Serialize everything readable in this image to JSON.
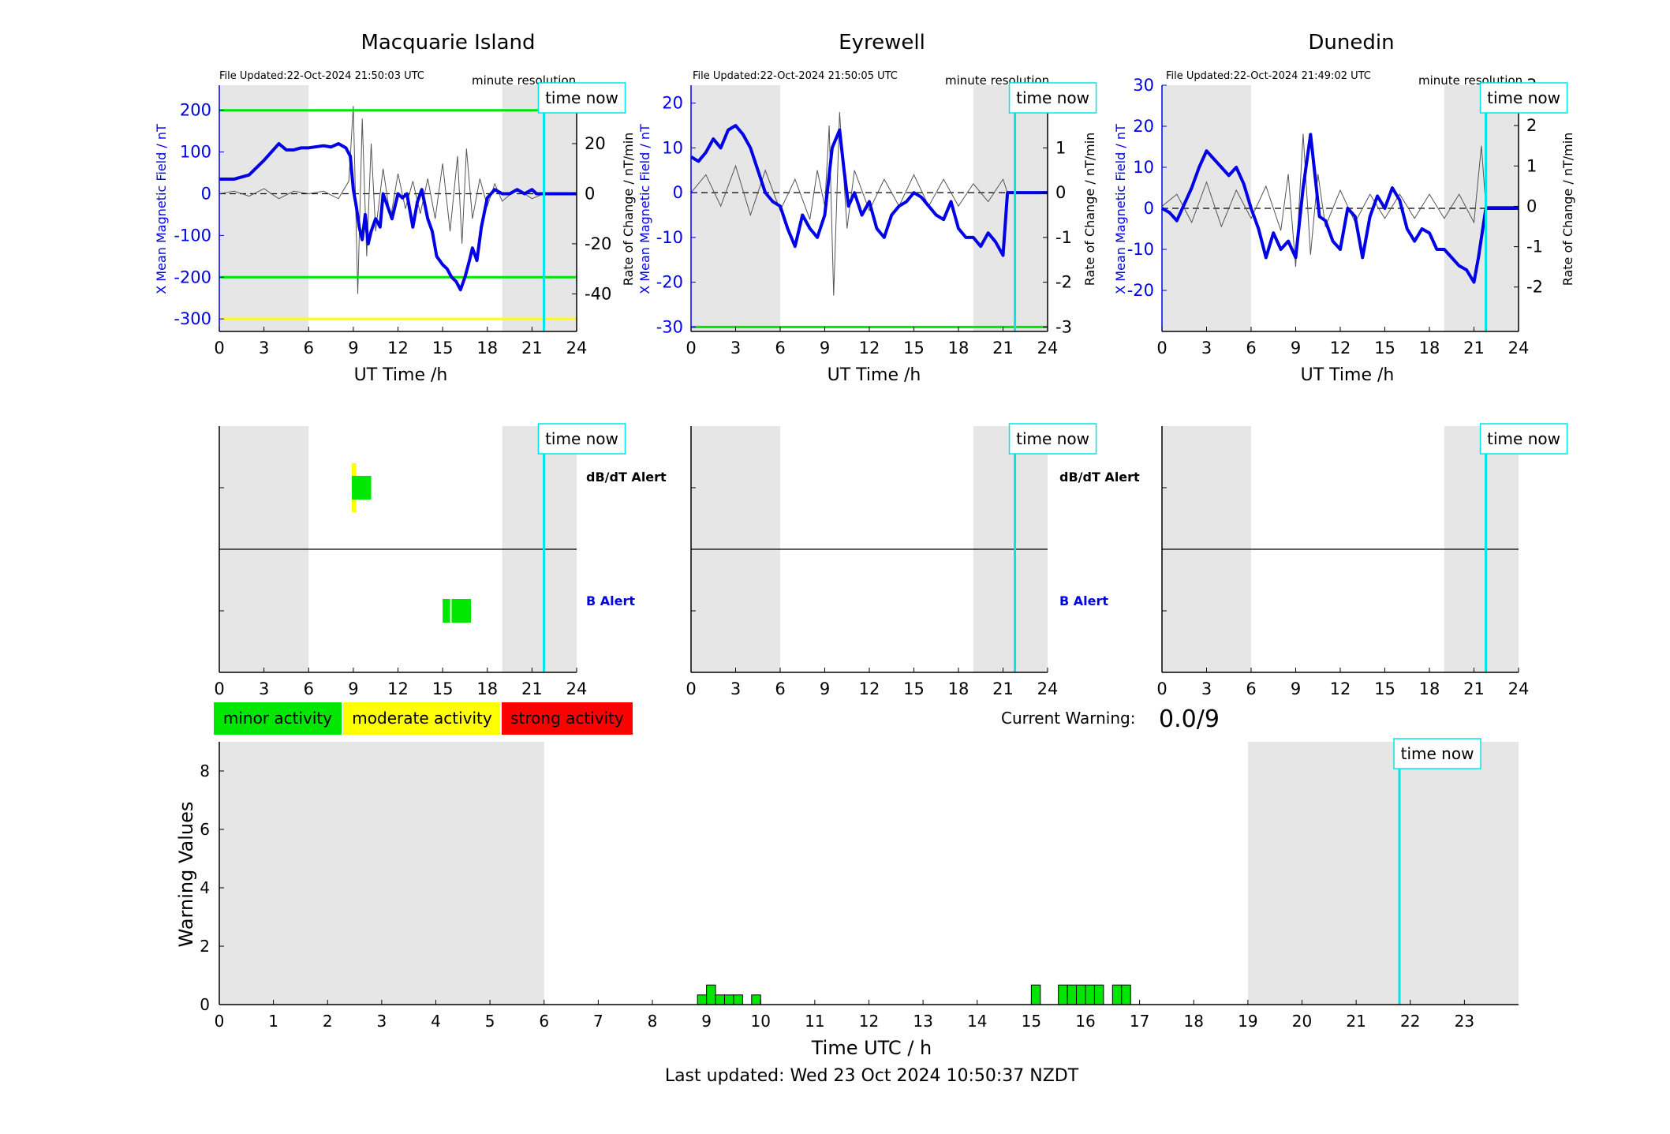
{
  "panels": [
    {
      "title": "Macquarie Island",
      "file_updated": "File Updated:22-Oct-2024 21:50:03 UTC",
      "resolution": "minute resolution",
      "ylabel_left": "X Mean Magnetic Field / nT",
      "ylabel_right": "Rate of Change / nT/min"
    },
    {
      "title": "Eyrewell",
      "file_updated": "File Updated:22-Oct-2024 21:50:05 UTC",
      "resolution": "minute resolution",
      "ylabel_left": "X Mean Magnetic Field / nT",
      "ylabel_right": "Rate of Change / nT/min"
    },
    {
      "title": "Dunedin",
      "file_updated": "File Updated:22-Oct-2024 21:49:02 UTC",
      "resolution": "minute resolution",
      "ylabel_left": "X Mean Magnetic Field / nT",
      "ylabel_right": "Rate of Change / nT/min"
    }
  ],
  "labels": {
    "ut_time": "UT Time /h",
    "time_now": "time now",
    "dbdt_alert": "dB/dT Alert",
    "b_alert": "B Alert",
    "current_warning_label": "Current Warning:",
    "current_warning_value": "0.0/9",
    "bottom_xlabel": "Time UTC / h",
    "bottom_ylabel": "Warning Values",
    "last_updated": "Last updated: Wed 23 Oct 2024 10:50:37 NZDT"
  },
  "legend": [
    {
      "label": "minor activity",
      "color": "#00e600"
    },
    {
      "label": "moderate activity",
      "color": "#ffff00"
    },
    {
      "label": "strong activity",
      "color": "#ff0000"
    }
  ],
  "colors": {
    "field_line": "#0000e6",
    "rate_line": "#555555",
    "time_now": "#00e6e6",
    "night_shading": "#e6e6e6",
    "threshold_green": "#00e600",
    "threshold_yellow": "#ffff00"
  },
  "chart_data": [
    {
      "type": "line",
      "title": "Macquarie Island",
      "xlabel": "UT Time /h",
      "ylabel": "X Mean Magnetic Field / nT",
      "ylabel_right": "Rate of Change / nT/min",
      "xlim": [
        0,
        24
      ],
      "ylim": [
        -330,
        260
      ],
      "ylim_right": [
        -55,
        43.3
      ],
      "xticks": [
        0,
        3,
        6,
        9,
        12,
        15,
        18,
        21,
        24
      ],
      "yticks": [
        -300,
        -200,
        -100,
        0,
        100,
        200
      ],
      "yticks_right": [
        -40,
        -20,
        0,
        20,
        40
      ],
      "shaded_hours": [
        [
          0,
          6
        ],
        [
          19,
          24
        ]
      ],
      "time_now": 21.8,
      "thresholds": [
        {
          "value": 200,
          "color": "green"
        },
        {
          "value": -200,
          "color": "green"
        },
        {
          "value": -300,
          "color": "yellow"
        }
      ],
      "series": [
        {
          "name": "X Mean Magnetic Field / nT",
          "x": [
            0,
            1,
            2,
            3,
            3.5,
            4,
            4.5,
            5,
            5.5,
            6,
            7,
            7.5,
            8,
            8.5,
            8.8,
            9,
            9.2,
            9.4,
            9.6,
            9.8,
            10,
            10.2,
            10.5,
            10.8,
            11,
            11.3,
            11.6,
            12,
            12.3,
            12.6,
            13,
            13.3,
            13.6,
            14,
            14.3,
            14.6,
            15,
            15.3,
            15.6,
            15.9,
            16.2,
            16.5,
            16.8,
            17,
            17.3,
            17.6,
            18,
            18.5,
            19,
            19.5,
            20,
            20.5,
            21,
            21.3,
            21.8,
            24
          ],
          "y": [
            35,
            35,
            45,
            80,
            100,
            120,
            105,
            105,
            110,
            110,
            115,
            112,
            120,
            110,
            90,
            10,
            -30,
            -80,
            -110,
            -50,
            -120,
            -90,
            -60,
            -80,
            0,
            -30,
            -60,
            0,
            -10,
            0,
            -80,
            -20,
            10,
            -60,
            -90,
            -150,
            -170,
            -180,
            -200,
            -210,
            -230,
            -200,
            -160,
            -130,
            -160,
            -80,
            -10,
            10,
            0,
            0,
            10,
            0,
            10,
            0,
            0,
            0
          ]
        },
        {
          "name": "Rate of Change / nT/min",
          "x": [
            0,
            1,
            2,
            3,
            4,
            5,
            6,
            7,
            8,
            8.7,
            9,
            9.3,
            9.6,
            9.9,
            10.2,
            10.5,
            11,
            11.5,
            12,
            12.5,
            13,
            13.5,
            14,
            14.5,
            15,
            15.5,
            16,
            16.3,
            16.6,
            17,
            17.5,
            18,
            18.5,
            19,
            20,
            21,
            21.8,
            24
          ],
          "y": [
            0,
            1,
            -1,
            2,
            -2,
            1,
            0,
            1,
            -2,
            5,
            35,
            -40,
            30,
            -25,
            20,
            -15,
            10,
            -10,
            8,
            -6,
            5,
            -8,
            6,
            -10,
            12,
            -15,
            15,
            -20,
            18,
            -10,
            6,
            -5,
            4,
            -3,
            2,
            -2,
            0,
            0
          ]
        }
      ]
    },
    {
      "type": "line",
      "title": "Eyrewell",
      "xlabel": "UT Time /h",
      "ylabel": "X Mean Magnetic Field / nT",
      "ylabel_right": "Rate of Change / nT/min",
      "xlim": [
        0,
        24
      ],
      "ylim": [
        -31,
        24
      ],
      "ylim_right": [
        -3.1,
        2.4
      ],
      "xticks": [
        0,
        3,
        6,
        9,
        12,
        15,
        18,
        21,
        24
      ],
      "yticks": [
        -30,
        -20,
        -10,
        0,
        10,
        20
      ],
      "yticks_right": [
        -3,
        -2,
        -1,
        0,
        1,
        2
      ],
      "shaded_hours": [
        [
          0,
          6
        ],
        [
          19,
          24
        ]
      ],
      "time_now": 21.8,
      "thresholds": [
        {
          "value": -30,
          "color": "green"
        }
      ],
      "series": [
        {
          "name": "X Mean Magnetic Field / nT",
          "x": [
            0,
            0.5,
            1,
            1.5,
            2,
            2.5,
            3,
            3.5,
            4,
            4.5,
            5,
            5.5,
            6,
            6.5,
            7,
            7.5,
            8,
            8.5,
            9,
            9.5,
            10,
            10.3,
            10.6,
            11,
            11.5,
            12,
            12.5,
            13,
            13.5,
            14,
            14.5,
            15,
            15.5,
            16,
            16.5,
            17,
            17.5,
            18,
            18.5,
            19,
            19.5,
            20,
            20.5,
            21,
            21.3,
            21.8,
            24
          ],
          "y": [
            8,
            7,
            9,
            12,
            10,
            14,
            15,
            13,
            10,
            5,
            0,
            -2,
            -3,
            -8,
            -12,
            -5,
            -8,
            -10,
            -5,
            10,
            14,
            5,
            -3,
            0,
            -5,
            -2,
            -8,
            -10,
            -5,
            -3,
            -2,
            0,
            -1,
            -3,
            -5,
            -6,
            -2,
            -8,
            -10,
            -10,
            -12,
            -9,
            -11,
            -14,
            0,
            0,
            0
          ]
        },
        {
          "name": "Rate of Change / nT/min",
          "x": [
            0,
            1,
            2,
            3,
            4,
            5,
            6,
            7,
            8,
            8.5,
            9,
            9.3,
            9.6,
            10,
            10.5,
            11,
            12,
            13,
            14,
            15,
            16,
            17,
            18,
            19,
            20,
            21,
            21.3,
            21.8,
            24
          ],
          "y": [
            0,
            0.4,
            -0.3,
            0.6,
            -0.5,
            0.5,
            -0.4,
            0.3,
            -0.6,
            0.5,
            -0.3,
            1.5,
            -2.3,
            1.8,
            -0.8,
            0.5,
            -0.4,
            0.3,
            -0.3,
            0.4,
            -0.3,
            0.3,
            -0.3,
            0.2,
            -0.2,
            0.3,
            0,
            0,
            0
          ]
        }
      ]
    },
    {
      "type": "line",
      "title": "Dunedin",
      "xlabel": "UT Time /h",
      "ylabel": "X Mean Magnetic Field / nT",
      "ylabel_right": "Rate of Change / nT/min",
      "xlim": [
        0,
        24
      ],
      "ylim": [
        -30,
        30
      ],
      "ylim_right": [
        -3.1,
        3
      ],
      "xticks": [
        0,
        3,
        6,
        9,
        12,
        15,
        18,
        21,
        24
      ],
      "yticks": [
        -20,
        -10,
        0,
        10,
        20,
        30
      ],
      "yticks_right": [
        -2,
        -1,
        0,
        1,
        2,
        3
      ],
      "shaded_hours": [
        [
          0,
          6
        ],
        [
          19,
          24
        ]
      ],
      "time_now": 21.8,
      "thresholds": [],
      "series": [
        {
          "name": "X Mean Magnetic Field / nT",
          "x": [
            0,
            0.5,
            1,
            1.5,
            2,
            2.5,
            3,
            3.5,
            4,
            4.5,
            5,
            5.5,
            6,
            6.5,
            7,
            7.5,
            8,
            8.5,
            9,
            9.5,
            10,
            10.3,
            10.6,
            11,
            11.5,
            12,
            12.5,
            13,
            13.5,
            14,
            14.5,
            15,
            15.5,
            16,
            16.5,
            17,
            17.5,
            18,
            18.5,
            19,
            19.5,
            20,
            20.5,
            21,
            21.3,
            21.8,
            24
          ],
          "y": [
            0,
            -1,
            -3,
            1,
            5,
            10,
            14,
            12,
            10,
            8,
            10,
            6,
            0,
            -5,
            -12,
            -6,
            -10,
            -8,
            -12,
            5,
            18,
            8,
            -2,
            -3,
            -8,
            -10,
            0,
            -2,
            -12,
            -2,
            3,
            0,
            5,
            2,
            -5,
            -8,
            -5,
            -6,
            -10,
            -10,
            -12,
            -14,
            -15,
            -18,
            -12,
            0,
            0
          ]
        },
        {
          "name": "Rate of Change / nT/min",
          "x": [
            0,
            1,
            2,
            3,
            4,
            5,
            6,
            7,
            8,
            8.5,
            9,
            9.5,
            10,
            10.5,
            11,
            12,
            13,
            14,
            15,
            16,
            17,
            18,
            19,
            20,
            21,
            21.5,
            21.8,
            24
          ],
          "y": [
            0,
            0.3,
            -0.4,
            0.6,
            -0.5,
            0.4,
            -0.3,
            0.5,
            -0.6,
            0.8,
            -1.5,
            1.8,
            -1.2,
            0.8,
            -0.5,
            0.4,
            -0.4,
            0.3,
            -0.3,
            0.3,
            -0.3,
            0.3,
            -0.3,
            0.3,
            -0.4,
            1.5,
            0,
            0
          ]
        }
      ]
    },
    {
      "type": "bar",
      "title": "",
      "xlabel": "UT Time /h",
      "xlim": [
        0,
        24
      ],
      "xticks": [
        0,
        3,
        6,
        9,
        12,
        15,
        18,
        21,
        24
      ],
      "rows": [
        "dB/dT Alert",
        "B Alert"
      ],
      "shaded_hours": [
        [
          0,
          6
        ],
        [
          19,
          24
        ]
      ],
      "time_now": 21.8,
      "events": [
        {
          "row": "dB/dT Alert",
          "start": 8.9,
          "end": 9.2,
          "level": "moderate"
        },
        {
          "row": "dB/dT Alert",
          "start": 8.9,
          "end": 10.2,
          "level": "minor"
        },
        {
          "row": "B Alert",
          "start": 15.0,
          "end": 15.5,
          "level": "minor"
        },
        {
          "row": "B Alert",
          "start": 15.6,
          "end": 16.9,
          "level": "minor"
        }
      ]
    },
    {
      "type": "bar",
      "title": "",
      "xlabel": "UT Time /h",
      "xlim": [
        0,
        24
      ],
      "xticks": [
        0,
        3,
        6,
        9,
        12,
        15,
        18,
        21,
        24
      ],
      "rows": [
        "dB/dT Alert",
        "B Alert"
      ],
      "shaded_hours": [
        [
          0,
          6
        ],
        [
          19,
          24
        ]
      ],
      "time_now": 21.8,
      "events": []
    },
    {
      "type": "bar",
      "title": "",
      "xlabel": "UT Time /h",
      "xlim": [
        0,
        24
      ],
      "xticks": [
        0,
        3,
        6,
        9,
        12,
        15,
        18,
        21,
        24
      ],
      "rows": [
        "dB/dT Alert",
        "B Alert"
      ],
      "shaded_hours": [
        [
          0,
          6
        ],
        [
          19,
          24
        ]
      ],
      "time_now": 21.8,
      "events": []
    },
    {
      "type": "bar",
      "title": "",
      "xlabel": "Time UTC / h",
      "ylabel": "Warning Values",
      "xlim": [
        0,
        24
      ],
      "ylim": [
        0,
        9
      ],
      "xticks": [
        0,
        1,
        2,
        3,
        4,
        5,
        6,
        7,
        8,
        9,
        10,
        11,
        12,
        13,
        14,
        15,
        16,
        17,
        18,
        19,
        20,
        21,
        22,
        23
      ],
      "yticks": [
        0,
        2,
        4,
        6,
        8
      ],
      "shaded_hours": [
        [
          0,
          6
        ],
        [
          19,
          24
        ]
      ],
      "time_now": 21.8,
      "bar_width_h": 0.1667,
      "x": [
        8.833,
        9.0,
        9.167,
        9.333,
        9.5,
        9.833,
        15.0,
        15.5,
        15.667,
        15.833,
        16.0,
        16.167,
        16.5,
        16.667
      ],
      "values": [
        0.33,
        0.67,
        0.33,
        0.33,
        0.33,
        0.33,
        0.67,
        0.67,
        0.67,
        0.67,
        0.67,
        0.67,
        0.67,
        0.67
      ]
    }
  ]
}
